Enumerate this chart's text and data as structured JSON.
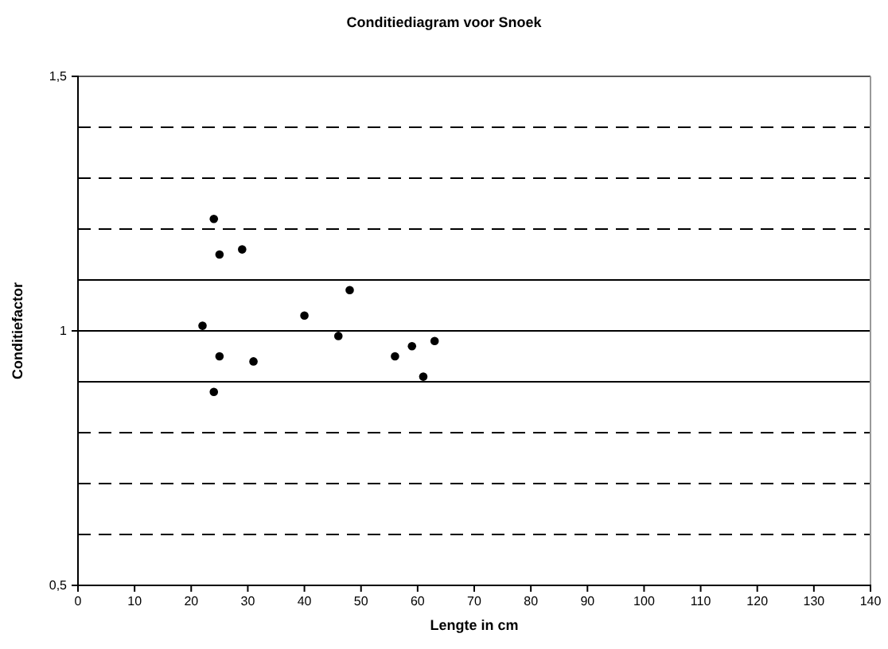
{
  "chart_data": {
    "type": "scatter",
    "title": "Conditiediagram voor Snoek",
    "xlabel": "Lengte in cm",
    "ylabel": "Conditiefactor",
    "x": [
      24,
      25,
      29,
      48,
      22,
      40,
      46,
      25,
      31,
      56,
      59,
      63,
      61,
      24
    ],
    "series": [
      {
        "color": "#000000",
        "values": [
          1.22,
          1.15,
          1.16,
          1.08,
          1.01,
          1.03,
          0.99,
          0.95,
          0.94,
          0.95,
          0.97,
          0.98,
          0.91,
          0.88
        ]
      }
    ],
    "xlim": [
      0,
      140
    ],
    "xticks": [
      0,
      10,
      20,
      30,
      40,
      50,
      60,
      70,
      80,
      90,
      100,
      110,
      120,
      130,
      140
    ],
    "ylim": [
      0.5,
      1.5
    ],
    "yticks": [
      {
        "value": 0.5,
        "label": "0,5"
      },
      1,
      {
        "value": 1.5,
        "label": "1,5"
      }
    ],
    "marker": "circle",
    "grid": false,
    "ref_lines": [
      {
        "axis": "y",
        "value": 1.4,
        "line_style": "dashed"
      },
      {
        "axis": "y",
        "value": 1.3,
        "line_style": "dashed"
      },
      {
        "axis": "y",
        "value": 1.2,
        "line_style": "dashed"
      },
      {
        "axis": "y",
        "value": 1.1,
        "line_style": "solid"
      },
      {
        "axis": "y",
        "value": 1.0,
        "line_style": "solid"
      },
      {
        "axis": "y",
        "value": 0.9,
        "line_style": "solid"
      },
      {
        "axis": "y",
        "value": 0.8,
        "line_style": "dashed"
      },
      {
        "axis": "y",
        "value": 0.7,
        "line_style": "dashed"
      },
      {
        "axis": "y",
        "value": 0.6,
        "line_style": "dashed"
      }
    ]
  }
}
